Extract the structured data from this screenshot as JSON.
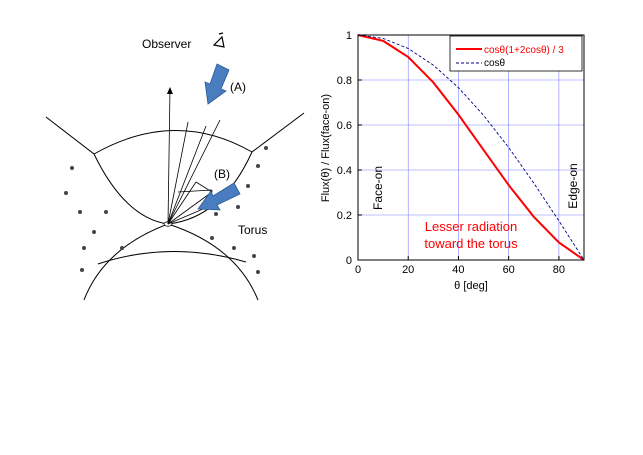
{
  "diagram": {
    "observer_label": "Observer",
    "arrow_a_label": "(A)",
    "arrow_b_label": "(B)",
    "torus_label": "Torus",
    "arrow_color": "#4a7cc0"
  },
  "chart_data": {
    "type": "line",
    "x": [
      0,
      10,
      20,
      30,
      40,
      50,
      60,
      70,
      80,
      90
    ],
    "series": [
      {
        "name": "cosθ(1+2cosθ) / 3",
        "color": "#ff0000",
        "style": "solid",
        "values": [
          1.0,
          0.974,
          0.902,
          0.789,
          0.646,
          0.489,
          0.333,
          0.192,
          0.078,
          0.0
        ]
      },
      {
        "name": "cosθ",
        "color": "#000080",
        "style": "dashed",
        "values": [
          1.0,
          0.985,
          0.94,
          0.866,
          0.766,
          0.643,
          0.5,
          0.342,
          0.174,
          0.0
        ]
      }
    ],
    "xlabel": "θ [deg]",
    "ylabel": "Flux(θ) / Flux(face-on)",
    "xlim": [
      0,
      90
    ],
    "ylim": [
      0,
      1
    ],
    "xticks": [
      "0",
      "20",
      "40",
      "60",
      "80"
    ],
    "yticks": [
      "0",
      "0.2",
      "0.4",
      "0.6",
      "0.8",
      "1"
    ],
    "grid": true,
    "legend": "top-right",
    "annotations": {
      "face_on": "Face-on",
      "edge_on": "Edge-on",
      "lesser_line1": "Lesser radiation",
      "lesser_line2": "toward the torus"
    },
    "grid_color": "#8080ff"
  }
}
